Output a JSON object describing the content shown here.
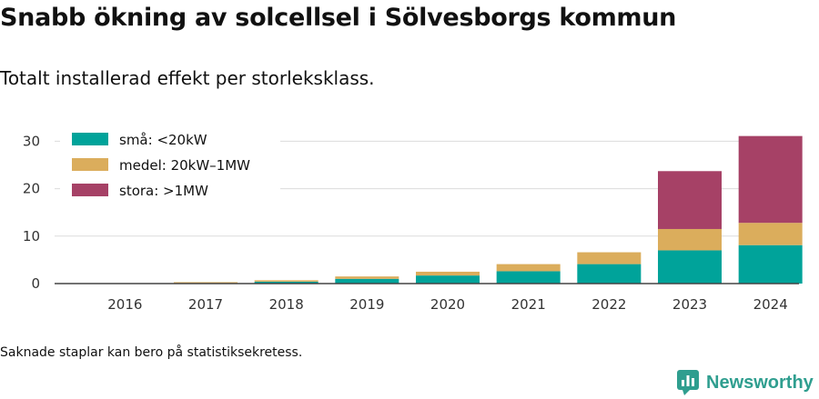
{
  "header": {
    "title": "Snabb ökning av solcellsel i Sölvesborgs kommun",
    "subtitle": "Totalt installerad effekt per storleksklass."
  },
  "footer": {
    "note": "Saknade staplar kan bero på statistiksekretess.",
    "brand": "Newsworthy"
  },
  "chart_data": {
    "type": "bar",
    "stacked": true,
    "categories": [
      "2016",
      "2017",
      "2018",
      "2019",
      "2020",
      "2021",
      "2022",
      "2023",
      "2024"
    ],
    "series": [
      {
        "name": "små: <20kW",
        "color": "#00a39a",
        "values": [
          0.05,
          0.1,
          0.4,
          1.0,
          1.7,
          2.6,
          4.1,
          7.0,
          8.1
        ]
      },
      {
        "name": "medel: 20kW–1MW",
        "color": "#dbad5c",
        "values": [
          0.0,
          0.2,
          0.3,
          0.5,
          0.8,
          1.5,
          2.5,
          4.5,
          4.7
        ]
      },
      {
        "name": "stora: >1MW",
        "color": "#a64166",
        "values": [
          0.0,
          0.0,
          0.0,
          0.0,
          0.0,
          0.0,
          0.0,
          12.2,
          18.3
        ]
      }
    ],
    "yticks": [
      0,
      10,
      20,
      30
    ],
    "ylim": [
      0,
      32
    ],
    "grid": true,
    "legend_position": "top-left"
  }
}
